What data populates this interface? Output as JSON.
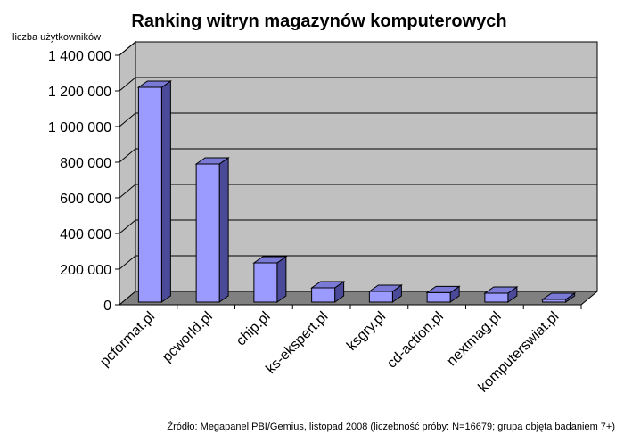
{
  "chart_data": {
    "type": "bar",
    "title": "Ranking witryn magazynów komputerowych",
    "ylabel": "liczba użytkowników",
    "xlabel": "",
    "categories": [
      "pcformat.pl",
      "pcworld.pl",
      "chip.pl",
      "ks-ekspert.pl",
      "ksgry.pl",
      "cd-action.pl",
      "nextmag.pl",
      "komputerswiat.pl"
    ],
    "values": [
      1220000,
      790000,
      235000,
      95000,
      75000,
      68000,
      65000,
      30000
    ],
    "ylim": [
      0,
      1400000
    ],
    "yticks": [
      "0",
      "200 000",
      "400 000",
      "600 000",
      "800 000",
      "1 000 000",
      "1 200 000",
      "1 400 000"
    ],
    "grid": true,
    "legend": "none",
    "source": "Źródło: Megapanel PBI/Gemius, listopad 2008 (liczebność próby: N=16679; grupa objęta badaniem 7+)"
  },
  "colors": {
    "bar_front": "#9b9bff",
    "bar_side": "#4a4a99",
    "bar_top": "#7a7ad6",
    "wall": "#c0c0c0",
    "floor": "#808080"
  }
}
